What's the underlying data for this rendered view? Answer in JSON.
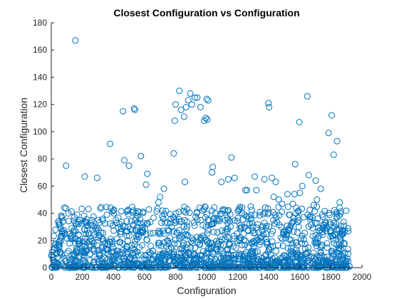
{
  "chart_data": {
    "type": "scatter",
    "title": "Closest Configuration vs Configuration",
    "xlabel": "Configuration",
    "ylabel": "Closest Configuration",
    "xlim": [
      0,
      2000
    ],
    "ylim": [
      0,
      180
    ],
    "xticks": [
      "0",
      "200",
      "400",
      "600",
      "800",
      "1000",
      "1200",
      "1400",
      "1600",
      "1800",
      "2000"
    ],
    "yticks": [
      "0",
      "20",
      "40",
      "60",
      "80",
      "100",
      "120",
      "140",
      "160",
      "180"
    ],
    "grid": false,
    "marker": "circle-open",
    "color": "#0072BD",
    "series": [
      {
        "x": [
          155,
          95,
          378,
          462,
          470,
          533,
          538,
          577,
          618,
          610,
          788,
          795,
          825,
          800,
          855,
          836,
          868,
          882,
          895,
          905,
          925,
          940,
          960,
          985,
          994,
          1000,
          1004,
          1010,
          1040,
          1035,
          1095,
          1160,
          1180,
          1260,
          1310,
          1372,
          1398,
          1402,
          1420,
          1432,
          1445,
          1465,
          1565,
          1570,
          1597,
          1616,
          1648,
          1658,
          1702,
          1735,
          1785,
          1805,
          1818,
          1840,
          1857,
          215,
          295,
          500,
          725,
          690,
          1520,
          1600,
          1250,
          1140,
          700,
          860,
          1555,
          1690,
          1485,
          1710,
          1320
        ],
        "y": [
          167,
          75,
          91,
          115,
          79,
          117,
          116,
          82,
          69,
          61,
          84,
          108,
          130,
          120,
          111,
          116,
          118,
          123,
          128,
          120,
          125,
          125,
          118,
          108,
          110,
          124,
          109,
          123,
          74,
          70,
          63,
          81,
          66,
          57,
          67,
          65,
          121,
          118,
          66,
          52,
          63,
          50,
          54,
          76,
          107,
          60,
          126,
          68,
          64,
          58,
          99,
          112,
          83,
          93,
          48,
          67,
          66,
          75,
          58,
          48,
          54,
          55,
          57,
          65,
          52,
          63,
          47,
          46,
          47,
          50,
          57
        ]
      }
    ],
    "dense_band": {
      "x_from": 0,
      "x_to": 1920,
      "y_from": 0,
      "y_to": 45,
      "points": 1500
    }
  }
}
